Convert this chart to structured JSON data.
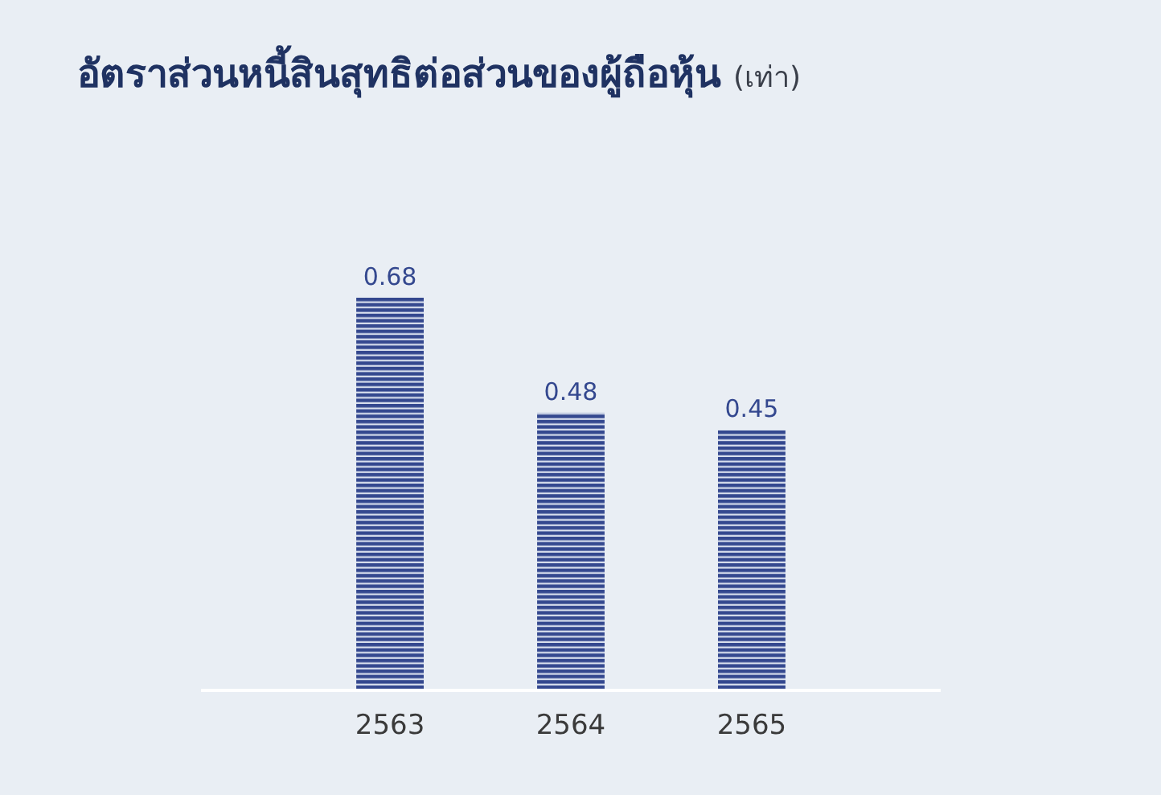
{
  "chart_data": {
    "type": "bar",
    "title": "อัตราส่วนหนี้สินสุทธิต่อส่วนของผู้ถือหุ้น",
    "subtitle": "(เท่า)",
    "categories": [
      "2563",
      "2564",
      "2565"
    ],
    "values": [
      0.68,
      0.48,
      0.45
    ],
    "color": "#34488f",
    "data_labels": true
  }
}
